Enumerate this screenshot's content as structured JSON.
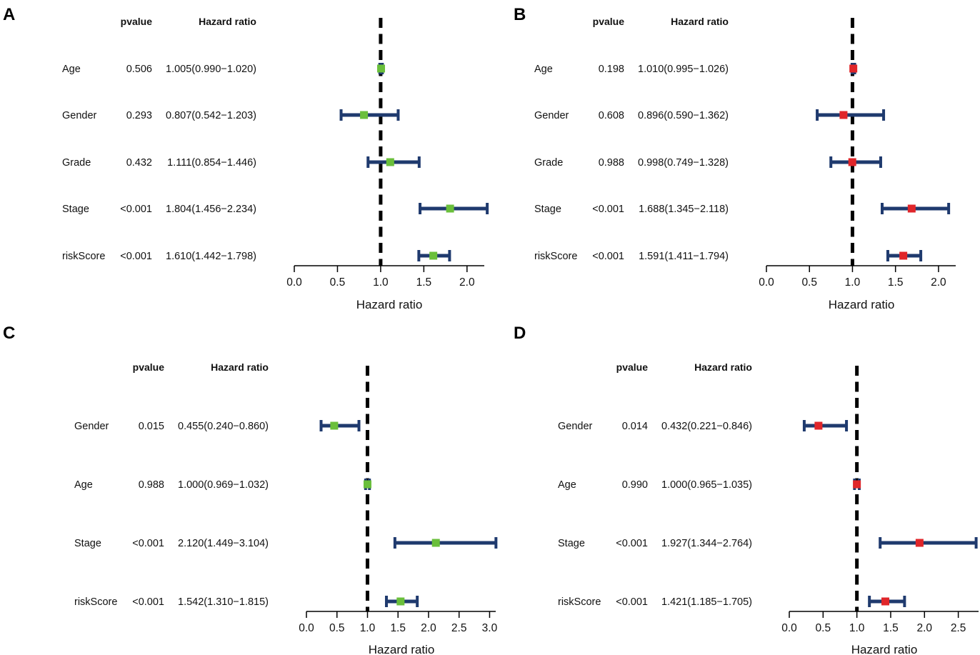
{
  "colors": {
    "ci_line": "#1f3a6e",
    "ref_line": "#000000",
    "green_marker": "#6abf3b",
    "red_marker": "#e0262a"
  },
  "chart_data": [
    {
      "panel": "A",
      "type": "forest",
      "marker_color": "#6abf3b",
      "col_pvalue": "pvalue",
      "col_hr": "Hazard ratio",
      "xlabel": "Hazard ratio",
      "xlim": [
        0,
        2.2
      ],
      "ticks": [
        0.0,
        0.5,
        1.0,
        1.5,
        2.0
      ],
      "tick_labels": [
        "0.0",
        "0.5",
        "1.0",
        "1.5",
        "2.0"
      ],
      "ref_value": 1.0,
      "rows": [
        {
          "name": "Age",
          "pvalue": "0.506",
          "hr_text": "1.005(0.990−1.020)",
          "hr": 1.005,
          "lo": 0.99,
          "hi": 1.02
        },
        {
          "name": "Gender",
          "pvalue": "0.293",
          "hr_text": "0.807(0.542−1.203)",
          "hr": 0.807,
          "lo": 0.542,
          "hi": 1.203
        },
        {
          "name": "Grade",
          "pvalue": "0.432",
          "hr_text": "1.111(0.854−1.446)",
          "hr": 1.111,
          "lo": 0.854,
          "hi": 1.446
        },
        {
          "name": "Stage",
          "pvalue": "<0.001",
          "hr_text": "1.804(1.456−2.234)",
          "hr": 1.804,
          "lo": 1.456,
          "hi": 2.234
        },
        {
          "name": "riskScore",
          "pvalue": "<0.001",
          "hr_text": "1.610(1.442−1.798)",
          "hr": 1.61,
          "lo": 1.442,
          "hi": 1.798
        }
      ]
    },
    {
      "panel": "B",
      "type": "forest",
      "marker_color": "#e0262a",
      "col_pvalue": "pvalue",
      "col_hr": "Hazard ratio",
      "xlabel": "Hazard ratio",
      "xlim": [
        0,
        2.2
      ],
      "ticks": [
        0.0,
        0.5,
        1.0,
        1.5,
        2.0
      ],
      "tick_labels": [
        "0.0",
        "0.5",
        "1.0",
        "1.5",
        "2.0"
      ],
      "ref_value": 1.0,
      "rows": [
        {
          "name": "Age",
          "pvalue": "0.198",
          "hr_text": "1.010(0.995−1.026)",
          "hr": 1.01,
          "lo": 0.995,
          "hi": 1.026
        },
        {
          "name": "Gender",
          "pvalue": "0.608",
          "hr_text": "0.896(0.590−1.362)",
          "hr": 0.896,
          "lo": 0.59,
          "hi": 1.362
        },
        {
          "name": "Grade",
          "pvalue": "0.988",
          "hr_text": "0.998(0.749−1.328)",
          "hr": 0.998,
          "lo": 0.749,
          "hi": 1.328
        },
        {
          "name": "Stage",
          "pvalue": "<0.001",
          "hr_text": "1.688(1.345−2.118)",
          "hr": 1.688,
          "lo": 1.345,
          "hi": 2.118
        },
        {
          "name": "riskScore",
          "pvalue": "<0.001",
          "hr_text": "1.591(1.411−1.794)",
          "hr": 1.591,
          "lo": 1.411,
          "hi": 1.794
        }
      ]
    },
    {
      "panel": "C",
      "type": "forest",
      "marker_color": "#6abf3b",
      "col_pvalue": "pvalue",
      "col_hr": "Hazard ratio",
      "xlabel": "Hazard ratio",
      "xlim": [
        0,
        3.1
      ],
      "ticks": [
        0.0,
        0.5,
        1.0,
        1.5,
        2.0,
        2.5,
        3.0
      ],
      "tick_labels": [
        "0.0",
        "0.5",
        "1.0",
        "1.5",
        "2.0",
        "2.5",
        "3.0"
      ],
      "ref_value": 1.0,
      "rows": [
        {
          "name": "Gender",
          "pvalue": "0.015",
          "hr_text": "0.455(0.240−0.860)",
          "hr": 0.455,
          "lo": 0.24,
          "hi": 0.86
        },
        {
          "name": "Age",
          "pvalue": "0.988",
          "hr_text": "1.000(0.969−1.032)",
          "hr": 1.0,
          "lo": 0.969,
          "hi": 1.032
        },
        {
          "name": "Stage",
          "pvalue": "<0.001",
          "hr_text": "2.120(1.449−3.104)",
          "hr": 2.12,
          "lo": 1.449,
          "hi": 3.104
        },
        {
          "name": "riskScore",
          "pvalue": "<0.001",
          "hr_text": "1.542(1.310−1.815)",
          "hr": 1.542,
          "lo": 1.31,
          "hi": 1.815
        }
      ]
    },
    {
      "panel": "D",
      "type": "forest",
      "marker_color": "#e0262a",
      "col_pvalue": "pvalue",
      "col_hr": "Hazard ratio",
      "xlabel": "Hazard ratio",
      "xlim": [
        0,
        2.8
      ],
      "ticks": [
        0.0,
        0.5,
        1.0,
        1.5,
        2.0,
        2.5
      ],
      "tick_labels": [
        "0.0",
        "0.5",
        "1.0",
        "1.5",
        "2.0",
        "2.5"
      ],
      "ref_value": 1.0,
      "rows": [
        {
          "name": "Gender",
          "pvalue": "0.014",
          "hr_text": "0.432(0.221−0.846)",
          "hr": 0.432,
          "lo": 0.221,
          "hi": 0.846
        },
        {
          "name": "Age",
          "pvalue": "0.990",
          "hr_text": "1.000(0.965−1.035)",
          "hr": 1.0,
          "lo": 0.965,
          "hi": 1.035
        },
        {
          "name": "Stage",
          "pvalue": "<0.001",
          "hr_text": "1.927(1.344−2.764)",
          "hr": 1.927,
          "lo": 1.344,
          "hi": 2.764
        },
        {
          "name": "riskScore",
          "pvalue": "<0.001",
          "hr_text": "1.421(1.185−1.705)",
          "hr": 1.421,
          "lo": 1.185,
          "hi": 1.705
        }
      ]
    }
  ]
}
